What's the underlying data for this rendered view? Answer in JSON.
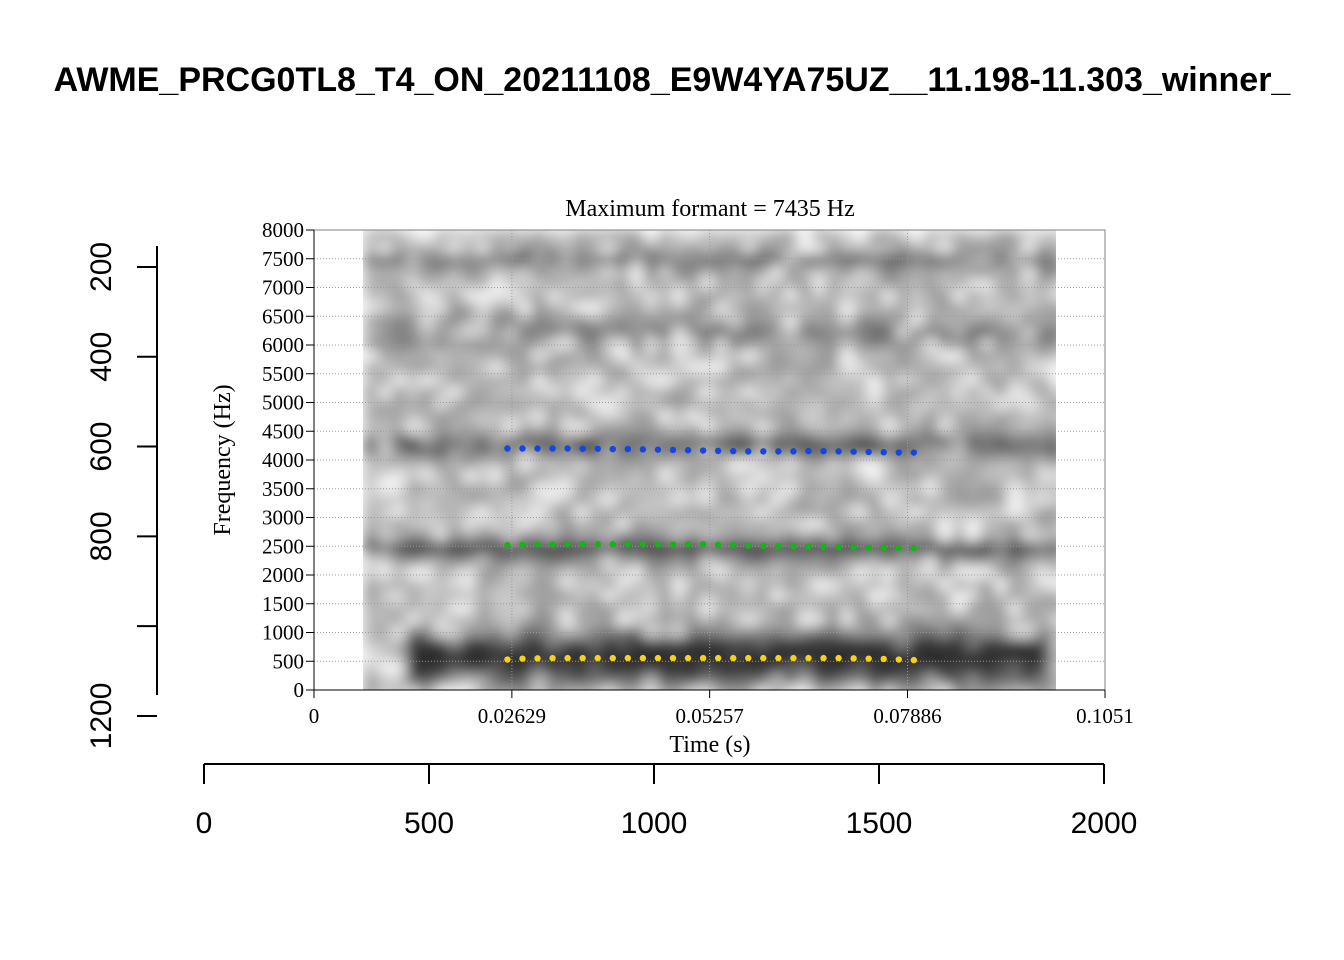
{
  "page_title": "AWME_PRCG0TL8_T4_ON_20211108_E9W4YA75UZ__11.198-11.303_winner_",
  "colors": {
    "f1": "#f2d21a",
    "f2": "#16b416",
    "f3": "#1446e0",
    "grid": "#9a9a9a",
    "axis": "#000000"
  },
  "chart_data": [
    {
      "type": "spectrogram",
      "title": "Maximum formant  =  7435 Hz",
      "xlabel": "Time (s)",
      "ylabel": "Frequency (Hz)",
      "xlim": [
        0,
        0.1051
      ],
      "ylim": [
        0,
        8000
      ],
      "x_ticks": [
        0,
        0.02629,
        0.05257,
        0.07886,
        0.1051
      ],
      "x_tick_labels": [
        "0",
        "0.02629",
        "0.05257",
        "0.07886",
        "0.1051"
      ],
      "y_ticks": [
        0,
        500,
        1000,
        1500,
        2000,
        2500,
        3000,
        3500,
        4000,
        4500,
        5000,
        5500,
        6000,
        6500,
        7000,
        7500,
        8000
      ],
      "y_tick_labels": [
        "0",
        "500",
        "1000",
        "1500",
        "2000",
        "2500",
        "3000",
        "3500",
        "4000",
        "4500",
        "5000",
        "5500",
        "6000",
        "6500",
        "7000",
        "7500",
        "8000"
      ],
      "grid": true,
      "spectrogram_time_range": [
        0.0066,
        0.0986
      ],
      "series": [
        {
          "key": "F1",
          "color": "#f2d21a",
          "x": [
            0.0257,
            0.0277,
            0.0297,
            0.0317,
            0.0337,
            0.0357,
            0.0377,
            0.0397,
            0.0417,
            0.0437,
            0.0457,
            0.0477,
            0.0497,
            0.0517,
            0.0537,
            0.0557,
            0.0577,
            0.0597,
            0.0617,
            0.0637,
            0.0657,
            0.0677,
            0.0697,
            0.0717,
            0.0737,
            0.0757,
            0.0777,
            0.0797
          ],
          "values": [
            530,
            545,
            550,
            555,
            555,
            555,
            555,
            555,
            555,
            555,
            555,
            555,
            555,
            555,
            555,
            555,
            555,
            555,
            555,
            555,
            555,
            555,
            555,
            550,
            545,
            540,
            530,
            520
          ]
        },
        {
          "key": "F2",
          "color": "#16b416",
          "x": [
            0.0257,
            0.0277,
            0.0297,
            0.0317,
            0.0337,
            0.0357,
            0.0377,
            0.0397,
            0.0417,
            0.0437,
            0.0457,
            0.0477,
            0.0497,
            0.0517,
            0.0537,
            0.0557,
            0.0577,
            0.0597,
            0.0617,
            0.0637,
            0.0657,
            0.0677,
            0.0697,
            0.0717,
            0.0737,
            0.0757,
            0.0777,
            0.0797
          ],
          "values": [
            2520,
            2525,
            2530,
            2530,
            2530,
            2535,
            2535,
            2535,
            2535,
            2530,
            2530,
            2530,
            2535,
            2535,
            2525,
            2520,
            2510,
            2505,
            2500,
            2500,
            2495,
            2490,
            2485,
            2480,
            2475,
            2475,
            2470,
            2470
          ]
        },
        {
          "key": "F3",
          "color": "#1446e0",
          "x": [
            0.0257,
            0.0277,
            0.0297,
            0.0317,
            0.0337,
            0.0357,
            0.0377,
            0.0397,
            0.0417,
            0.0437,
            0.0457,
            0.0477,
            0.0497,
            0.0517,
            0.0537,
            0.0557,
            0.0577,
            0.0597,
            0.0617,
            0.0637,
            0.0657,
            0.0677,
            0.0697,
            0.0717,
            0.0737,
            0.0757,
            0.0777,
            0.0797
          ],
          "values": [
            4200,
            4200,
            4200,
            4200,
            4200,
            4195,
            4195,
            4190,
            4190,
            4185,
            4180,
            4175,
            4170,
            4165,
            4160,
            4155,
            4150,
            4150,
            4150,
            4150,
            4155,
            4155,
            4150,
            4145,
            4140,
            4135,
            4130,
            4130
          ]
        }
      ]
    },
    {
      "type": "axis",
      "orientation": "vertical",
      "ticks": [
        200,
        400,
        600,
        800,
        1000,
        1200
      ],
      "tick_labels": [
        "200",
        "400",
        "600",
        "800",
        "",
        "1200"
      ],
      "lim": [
        150,
        1150
      ],
      "inverted": true
    },
    {
      "type": "axis",
      "orientation": "horizontal",
      "ticks": [
        0,
        500,
        1000,
        1500,
        2000
      ],
      "tick_labels": [
        "0",
        "500",
        "1000",
        "1500",
        "2000"
      ],
      "lim": [
        0,
        2000
      ]
    }
  ]
}
